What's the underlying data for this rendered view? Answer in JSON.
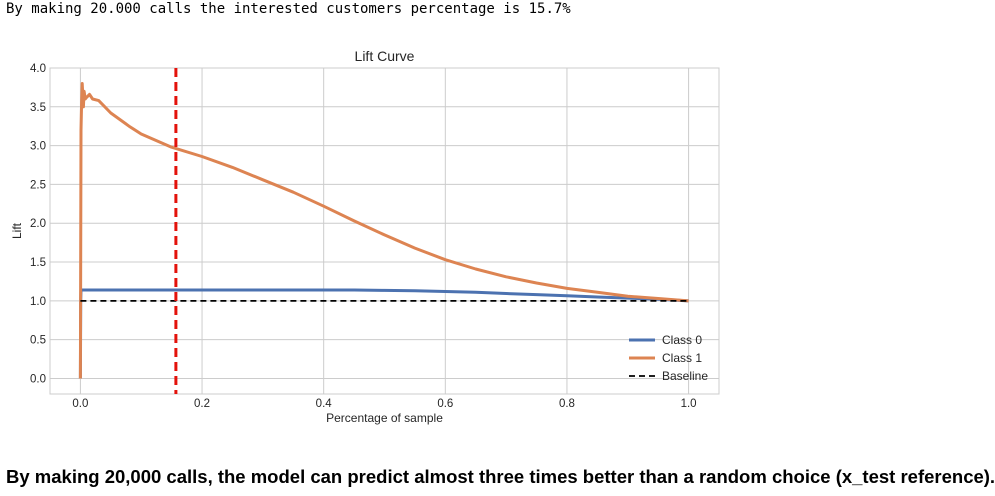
{
  "console_output": "By making 20.000 calls the interested customers percentage is 15.7%",
  "caption": "By making 20,000 calls, the model can predict almost three times better than a random choice (x_test reference).",
  "colors": {
    "class0": "#4c72b0",
    "class1": "#dd8452",
    "baseline": "#000000",
    "marker": "#e3120b",
    "grid": "#cccccc"
  },
  "chart_data": {
    "type": "line",
    "title": "Lift Curve",
    "xlabel": "Percentage of sample",
    "ylabel": "Lift",
    "xlim": [
      -0.05,
      1.05
    ],
    "ylim": [
      -0.2,
      4.0
    ],
    "xticks": [
      0.0,
      0.2,
      0.4,
      0.6,
      0.8,
      1.0
    ],
    "xtick_labels": [
      "0.0",
      "0.2",
      "0.4",
      "0.6",
      "0.8",
      "1.0"
    ],
    "yticks": [
      0.0,
      0.5,
      1.0,
      1.5,
      2.0,
      2.5,
      3.0,
      3.5,
      4.0
    ],
    "ytick_labels": [
      "0.0",
      "0.5",
      "1.0",
      "1.5",
      "2.0",
      "2.5",
      "3.0",
      "3.5",
      "4.0"
    ],
    "grid": true,
    "legend_position": "lower-right",
    "series": [
      {
        "name": "Class 0",
        "style": "solid",
        "x": [
          0.0,
          0.0005,
          0.001,
          0.002,
          0.1,
          0.2,
          0.3,
          0.4,
          0.45,
          0.5,
          0.55,
          0.6,
          0.65,
          0.7,
          0.75,
          0.8,
          0.85,
          0.9,
          0.95,
          1.0
        ],
        "y": [
          0.0,
          1.0,
          1.14,
          1.14,
          1.14,
          1.14,
          1.14,
          1.14,
          1.14,
          1.135,
          1.13,
          1.12,
          1.11,
          1.095,
          1.08,
          1.065,
          1.05,
          1.035,
          1.02,
          1.0
        ]
      },
      {
        "name": "Class 1",
        "style": "solid",
        "x": [
          0.0,
          0.001,
          0.002,
          0.003,
          0.004,
          0.005,
          0.006,
          0.008,
          0.01,
          0.015,
          0.02,
          0.03,
          0.05,
          0.08,
          0.1,
          0.15,
          0.2,
          0.25,
          0.3,
          0.35,
          0.4,
          0.45,
          0.5,
          0.55,
          0.6,
          0.65,
          0.7,
          0.75,
          0.8,
          0.85,
          0.9,
          0.95,
          1.0
        ],
        "y": [
          0.0,
          3.2,
          3.55,
          3.8,
          3.65,
          3.5,
          3.7,
          3.6,
          3.62,
          3.66,
          3.6,
          3.58,
          3.42,
          3.25,
          3.15,
          2.98,
          2.86,
          2.72,
          2.56,
          2.4,
          2.22,
          2.03,
          1.85,
          1.68,
          1.53,
          1.41,
          1.31,
          1.23,
          1.16,
          1.11,
          1.06,
          1.03,
          1.0
        ]
      },
      {
        "name": "Baseline",
        "style": "dashed",
        "x": [
          0.0,
          1.0
        ],
        "y": [
          1.0,
          1.0
        ]
      }
    ],
    "vline": {
      "x": 0.157,
      "style": "dashed"
    }
  }
}
